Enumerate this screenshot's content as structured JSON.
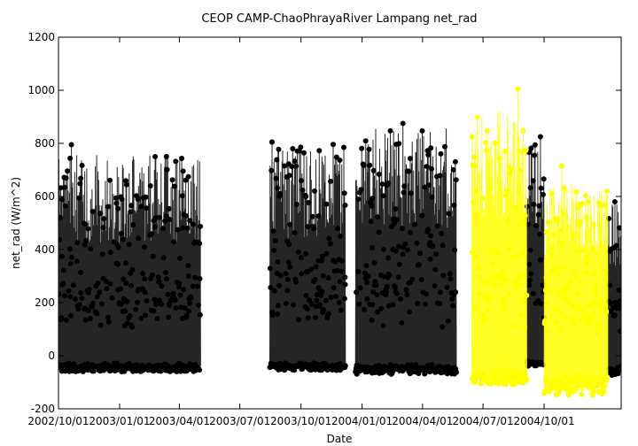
{
  "chart_data": {
    "type": "line",
    "title": "CEOP CAMP-ChaoPhrayaRiver Lampang  net_rad",
    "xlabel": "Date",
    "ylabel": "net_rad (W/m^2)",
    "xlim": [
      "2002-10-01",
      "2005-01-25"
    ],
    "ylim": [
      -200,
      1200
    ],
    "yticks": [
      -200,
      0,
      200,
      400,
      600,
      800,
      1000,
      1200
    ],
    "xticks": [
      "2002/10/01",
      "2003/01/01",
      "2003/04/01",
      "2003/07/01",
      "2003/10/01",
      "2004/01/01",
      "2004/04/01",
      "2004/07/01",
      "2004/10/01"
    ],
    "grid": false,
    "legend": "none",
    "series_style": "daily diurnal cycle (min to max), points connected by lines",
    "series": [
      {
        "color": "#000000",
        "segments": [
          {
            "start": "2002-10-01",
            "end": "2003-05-03",
            "daily_min": -60,
            "daily_max": 760,
            "peak": {
              "date": "2002-10-20",
              "value": 795
            }
          },
          {
            "start": "2003-08-15",
            "end": "2003-12-07",
            "daily_min": -55,
            "daily_max": 800,
            "peak": {
              "date": "2003-08-18",
              "value": 805
            }
          },
          {
            "start": "2003-12-22",
            "end": "2004-05-22",
            "daily_min": -70,
            "daily_max": 860,
            "peak": {
              "date": "2004-03-02",
              "value": 875
            }
          },
          {
            "start": "2004-09-05",
            "end": "2004-10-01",
            "daily_min": -40,
            "daily_max": 820,
            "peak": {
              "date": "2004-09-25",
              "value": 825
            }
          },
          {
            "start": "2005-01-05",
            "end": "2005-01-25",
            "daily_min": -80,
            "daily_max": 575,
            "peak": {
              "date": "2005-01-15",
              "value": 580
            }
          }
        ]
      },
      {
        "color": "#ffff00",
        "segments": [
          {
            "start": "2004-06-14",
            "end": "2004-09-05",
            "daily_min": -110,
            "daily_max": 940,
            "peak": {
              "date": "2004-08-22",
              "value": 1005
            }
          },
          {
            "start": "2004-10-01",
            "end": "2005-01-05",
            "daily_min": -150,
            "daily_max": 650,
            "peak": {
              "date": "2004-10-27",
              "value": 715
            }
          }
        ]
      }
    ]
  }
}
